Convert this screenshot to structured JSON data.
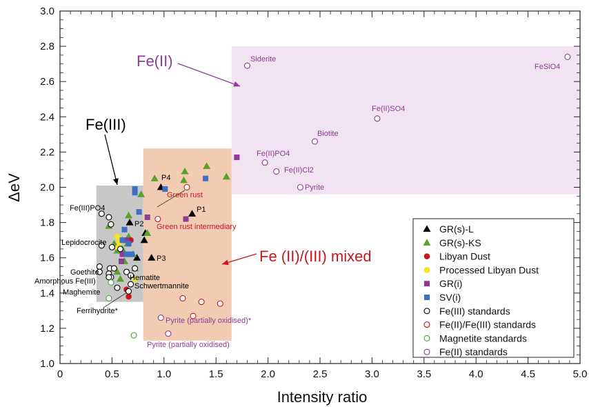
{
  "chart_data": {
    "type": "scatter",
    "xlabel": "Intensity ratio",
    "ylabel": "ΔeV",
    "xlim": [
      0,
      5
    ],
    "ylim": [
      1.0,
      3.0
    ],
    "xticks": [
      "0",
      "0.5",
      "1.0",
      "1.5",
      "2.0",
      "2.5",
      "3.0",
      "3.5",
      "4.0",
      "4.5",
      "5.0"
    ],
    "yticks": [
      "1.0",
      "1.2",
      "1.4",
      "1.6",
      "1.8",
      "2.0",
      "2.2",
      "2.4",
      "2.6",
      "2.8",
      "3.0"
    ],
    "grid": false,
    "legend_position": "bottom-right",
    "colors": {
      "black": "#000000",
      "green": "#5aa02c",
      "red": "#c8161d",
      "yellow": "#f5e61a",
      "purple": "#8e3a96",
      "blue": "#3d6fc4",
      "std_red": "#c8161d",
      "std_green": "#4aa33a",
      "std_purple": "#8e3a96",
      "region_gray": "#bdbdbd",
      "region_orange": "#efc3a4",
      "region_purple": "#f1e3f1"
    },
    "regions": [
      {
        "label": "Fe(III)",
        "x": [
          0.35,
          0.8
        ],
        "y": [
          1.35,
          2.01
        ],
        "color": "region_gray"
      },
      {
        "label": "Fe (II)/(III) mixed",
        "x": [
          0.8,
          1.65
        ],
        "y": [
          1.13,
          2.22
        ],
        "color": "region_orange"
      },
      {
        "label": "Fe(II)",
        "x": [
          1.65,
          5.0
        ],
        "y": [
          1.96,
          2.8
        ],
        "color": "region_purple"
      }
    ],
    "series": [
      {
        "name": "GR(s)-L",
        "marker": "triangle",
        "color": "black",
        "filled": true,
        "points": [
          [
            0.97,
            2.0
          ],
          [
            1.27,
            1.85
          ],
          [
            0.67,
            1.8
          ],
          [
            0.82,
            1.74
          ],
          [
            0.81,
            1.7
          ],
          [
            0.88,
            1.6
          ],
          [
            0.74,
            1.6
          ]
        ]
      },
      {
        "name": "GR(s)-KS",
        "marker": "triangle",
        "color": "green",
        "filled": true,
        "points": [
          [
            0.91,
            2.05
          ],
          [
            1.2,
            2.09
          ],
          [
            1.41,
            2.12
          ],
          [
            1.6,
            2.06
          ],
          [
            0.78,
            1.96
          ],
          [
            1.19,
            2.04
          ],
          [
            0.47,
            1.78
          ],
          [
            0.66,
            1.72
          ],
          [
            0.84,
            1.74
          ],
          [
            0.52,
            1.68
          ],
          [
            0.6,
            1.65
          ],
          [
            0.7,
            1.62
          ],
          [
            0.55,
            1.52
          ],
          [
            0.58,
            1.48
          ],
          [
            0.66,
            1.84
          ],
          [
            0.62,
            1.58
          ],
          [
            0.55,
            1.64
          ],
          [
            0.65,
            1.68
          ],
          [
            0.72,
            1.54
          ],
          [
            0.6,
            1.7
          ]
        ]
      },
      {
        "name": "Libyan Dust",
        "marker": "circle",
        "color": "red",
        "filled": true,
        "points": [
          [
            0.68,
            1.7
          ],
          [
            0.66,
            1.38
          ],
          [
            0.64,
            1.42
          ]
        ]
      },
      {
        "name": "Processed Libyan Dust",
        "marker": "circle",
        "color": "yellow",
        "filled": true,
        "points": [
          [
            0.55,
            1.72
          ],
          [
            0.57,
            1.69
          ],
          [
            0.56,
            1.66
          ],
          [
            0.72,
            1.48
          ]
        ]
      },
      {
        "name": "GR(i)",
        "marker": "square",
        "color": "purple",
        "filled": true,
        "points": [
          [
            1.7,
            2.17
          ],
          [
            1.21,
            1.82
          ],
          [
            0.84,
            1.83
          ],
          [
            0.64,
            1.7
          ],
          [
            0.59,
            1.58
          ],
          [
            0.6,
            1.62
          ]
        ]
      },
      {
        "name": "SV(i)",
        "marker": "square",
        "color": "blue",
        "filled": true,
        "points": [
          [
            0.72,
            1.97
          ],
          [
            1.01,
            1.99
          ],
          [
            1.4,
            2.05
          ],
          [
            0.72,
            1.99
          ],
          [
            0.76,
            1.86
          ],
          [
            0.62,
            1.76
          ],
          [
            0.66,
            1.68
          ],
          [
            0.69,
            1.62
          ],
          [
            0.64,
            1.62
          ],
          [
            0.6,
            1.7
          ]
        ]
      },
      {
        "name": "Fe(III) standards",
        "marker": "circle",
        "color": "black",
        "filled": false,
        "points": [
          [
            0.4,
            1.85
          ],
          [
            0.47,
            1.83
          ],
          [
            0.49,
            1.79
          ],
          [
            0.4,
            1.67
          ],
          [
            0.5,
            1.66
          ],
          [
            0.58,
            1.65
          ],
          [
            0.48,
            1.54
          ],
          [
            0.52,
            1.54
          ],
          [
            0.38,
            1.55
          ],
          [
            0.47,
            1.51
          ],
          [
            0.49,
            1.49
          ],
          [
            0.38,
            1.52
          ],
          [
            0.64,
            1.52
          ],
          [
            0.72,
            1.54
          ],
          [
            0.68,
            1.5
          ],
          [
            0.47,
            1.49
          ],
          [
            0.55,
            1.43
          ],
          [
            0.66,
            1.41
          ],
          [
            0.68,
            1.45
          ]
        ]
      },
      {
        "name": "Fe(II)/Fe(III) standards",
        "marker": "circle",
        "color": "std_red",
        "filled": false,
        "points": [
          [
            1.22,
            2.0
          ],
          [
            0.94,
            1.82
          ],
          [
            1.18,
            1.37
          ],
          [
            1.36,
            1.35
          ],
          [
            1.54,
            1.34
          ],
          [
            1.28,
            1.27
          ]
        ]
      },
      {
        "name": "Magnetite standards",
        "marker": "circle",
        "color": "std_green",
        "filled": false,
        "points": [
          [
            0.47,
            1.37
          ],
          [
            0.71,
            1.16
          ],
          [
            0.49,
            1.46
          ]
        ]
      },
      {
        "name": "Fe(II) standards",
        "marker": "circle",
        "color": "std_purple",
        "filled": false,
        "points": [
          [
            1.8,
            2.69
          ],
          [
            4.88,
            2.74
          ],
          [
            3.05,
            2.39
          ],
          [
            2.45,
            2.26
          ],
          [
            1.97,
            2.14
          ],
          [
            2.08,
            2.09
          ],
          [
            2.31,
            2.0
          ],
          [
            0.97,
            1.26
          ],
          [
            1.04,
            1.17
          ]
        ]
      }
    ],
    "annotations": [
      {
        "text": "Fe(II)",
        "color": "#8e3a96",
        "size": "large"
      },
      {
        "text": "Fe(III)",
        "color": "#000000",
        "size": "large"
      },
      {
        "text": "Fe (II)/(III) mixed",
        "color": "#c8161d",
        "size": "large"
      },
      {
        "text": "Siderite",
        "color": "#8e3a96"
      },
      {
        "text": "FeSiO4",
        "color": "#8e3a96"
      },
      {
        "text": "Fe(II)SO4",
        "color": "#8e3a96"
      },
      {
        "text": "Biotite",
        "color": "#8e3a96"
      },
      {
        "text": "Fe(II)PO4",
        "color": "#8e3a96"
      },
      {
        "text": "Fe(II)Cl2",
        "color": "#8e3a96"
      },
      {
        "text": "Pyrite",
        "color": "#8e3a96"
      },
      {
        "text": "Pyrite (partially oxidised)*",
        "color": "#8e3a96"
      },
      {
        "text": "Pyrite (partially oxidised)",
        "color": "#8e3a96"
      },
      {
        "text": "Green rust",
        "color": "#c8161d"
      },
      {
        "text": "Green rust intermediary",
        "color": "#c8161d"
      },
      {
        "text": "P1",
        "color": "#000000"
      },
      {
        "text": "P2",
        "color": "#000000"
      },
      {
        "text": "P3",
        "color": "#000000"
      },
      {
        "text": "P4",
        "color": "#000000"
      },
      {
        "text": "Fe(III)PO4",
        "color": "#000000"
      },
      {
        "text": "Lepidocrocite",
        "color": "#000000"
      },
      {
        "text": "Goethite",
        "color": "#000000"
      },
      {
        "text": "Amorphous Fe(III)",
        "color": "#000000"
      },
      {
        "text": "Hematite",
        "color": "#000000"
      },
      {
        "text": "Schwertmannite",
        "color": "#000000"
      },
      {
        "text": "Maghemite",
        "color": "#000000"
      },
      {
        "text": "Ferrihydrite*",
        "color": "#000000"
      }
    ]
  }
}
